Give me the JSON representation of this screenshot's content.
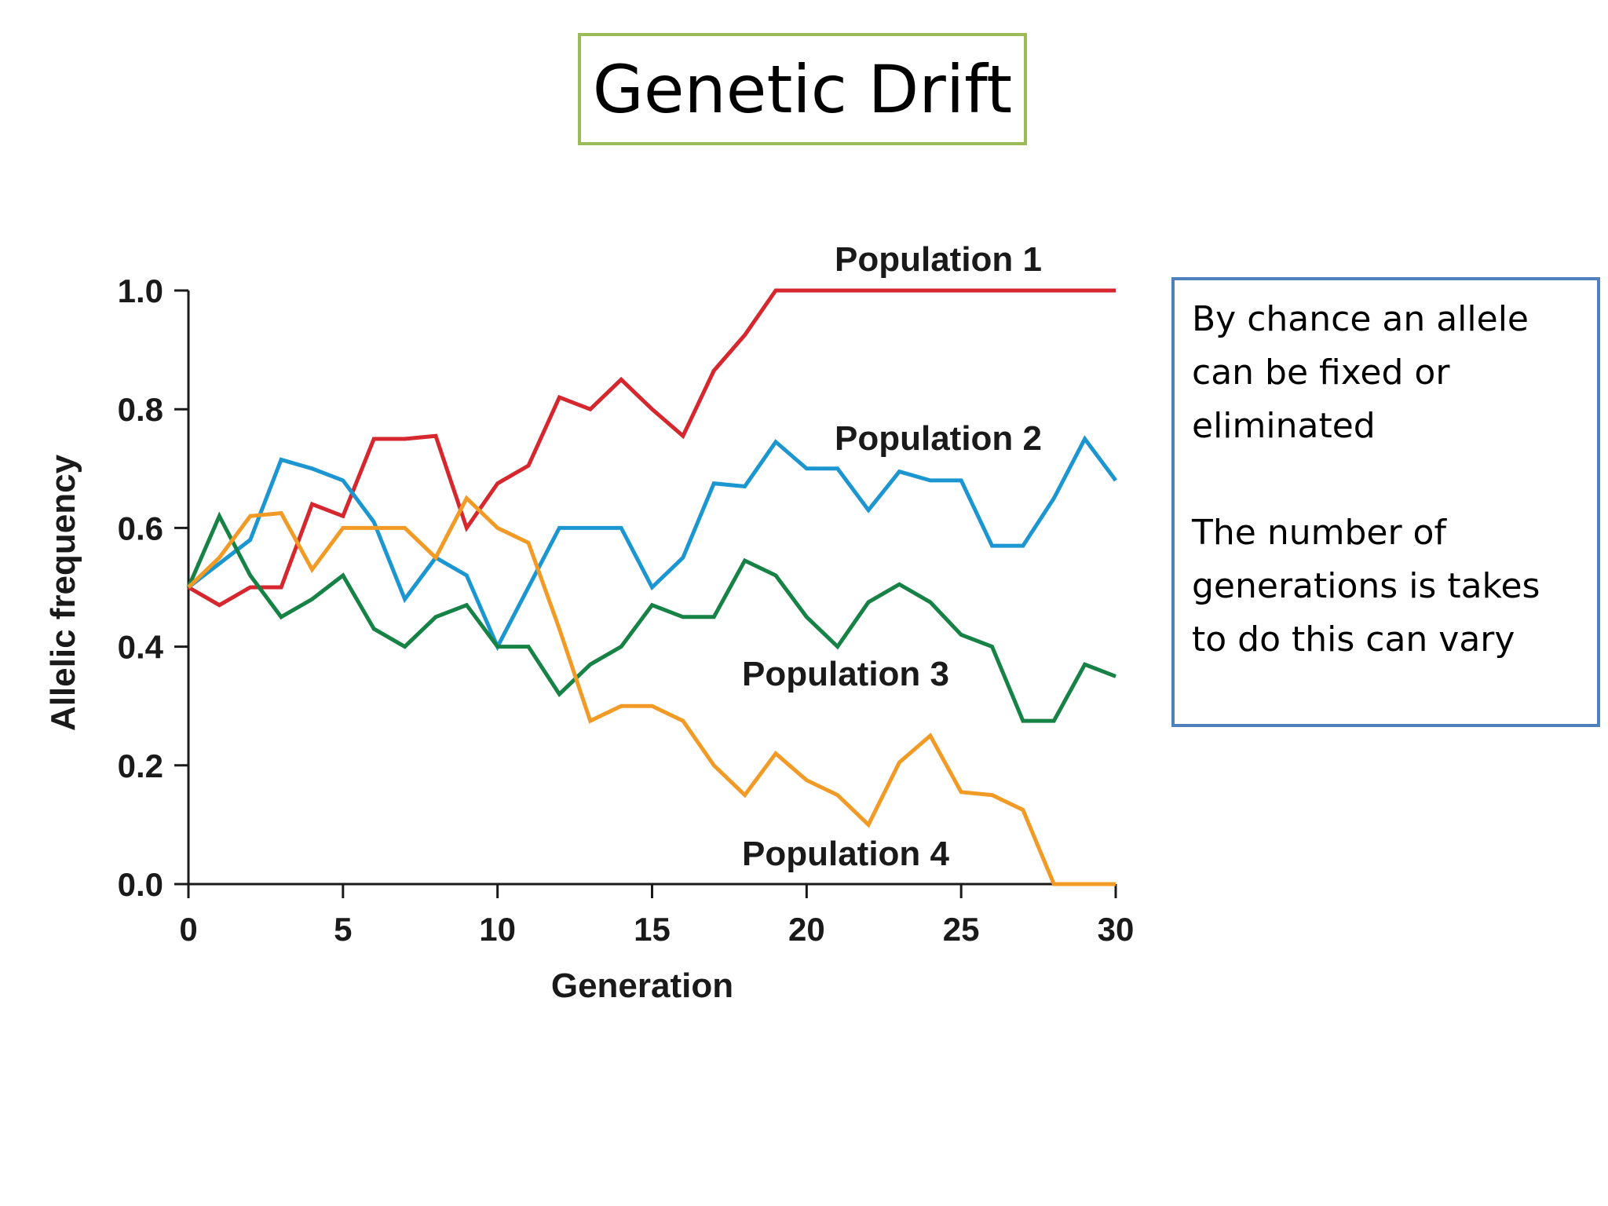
{
  "slide": {
    "title": "Genetic Drift",
    "title_border_color": "#9bbb59",
    "note_border_color": "#4f81bd",
    "note_paragraphs": [
      "By chance an allele can be fixed or eliminated",
      "The number of generations is takes to do this can vary"
    ]
  },
  "chart_data": {
    "type": "line",
    "title": "",
    "xlabel": "Generation",
    "ylabel": "Allelic frequency",
    "xlim": [
      0,
      30
    ],
    "ylim": [
      0,
      1.0
    ],
    "x_ticks": [
      0,
      5,
      10,
      15,
      20,
      25,
      30
    ],
    "y_ticks": [
      0.0,
      0.2,
      0.4,
      0.6,
      0.8,
      1.0
    ],
    "y_tick_labels": [
      "0.0",
      "0.2",
      "0.4",
      "0.6",
      "0.8",
      "1.0"
    ],
    "grid": false,
    "legend": "inline labels",
    "x": [
      0,
      1,
      2,
      3,
      4,
      5,
      6,
      7,
      8,
      9,
      10,
      11,
      12,
      13,
      14,
      15,
      16,
      17,
      18,
      19,
      20,
      21,
      22,
      23,
      24,
      25,
      26,
      27,
      28,
      29,
      30
    ],
    "series": [
      {
        "name": "Population 1",
        "color": "#d7272e",
        "values": [
          0.5,
          0.47,
          0.5,
          0.5,
          0.64,
          0.62,
          0.75,
          0.75,
          0.755,
          0.6,
          0.675,
          0.705,
          0.82,
          0.8,
          0.85,
          0.8,
          0.755,
          0.865,
          0.925,
          1.0,
          1.0,
          1.0,
          1.0,
          1.0,
          1.0,
          1.0,
          1.0,
          1.0,
          1.0,
          1.0,
          1.0
        ]
      },
      {
        "name": "Population 2",
        "color": "#1c96d0",
        "values": [
          0.5,
          0.54,
          0.58,
          0.715,
          0.7,
          0.68,
          0.61,
          0.48,
          0.55,
          0.52,
          0.4,
          0.5,
          0.6,
          0.6,
          0.6,
          0.5,
          0.55,
          0.675,
          0.67,
          0.745,
          0.7,
          0.7,
          0.63,
          0.695,
          0.68,
          0.68,
          0.57,
          0.57,
          0.65,
          0.75,
          0.68
        ]
      },
      {
        "name": "Population 3",
        "color": "#178245",
        "values": [
          0.5,
          0.62,
          0.52,
          0.45,
          0.48,
          0.52,
          0.43,
          0.4,
          0.45,
          0.47,
          0.4,
          0.4,
          0.32,
          0.37,
          0.4,
          0.47,
          0.45,
          0.45,
          0.545,
          0.52,
          0.45,
          0.4,
          0.475,
          0.505,
          0.475,
          0.42,
          0.4,
          0.275,
          0.275,
          0.37,
          0.35
        ]
      },
      {
        "name": "Population 4",
        "color": "#f19a26",
        "values": [
          0.5,
          0.55,
          0.62,
          0.625,
          0.53,
          0.6,
          0.6,
          0.6,
          0.55,
          0.65,
          0.6,
          0.575,
          0.43,
          0.275,
          0.3,
          0.3,
          0.275,
          0.2,
          0.15,
          0.22,
          0.175,
          0.15,
          0.1,
          0.205,
          0.25,
          0.155,
          0.15,
          0.125,
          0.0,
          0.0,
          0.0
        ]
      }
    ]
  }
}
